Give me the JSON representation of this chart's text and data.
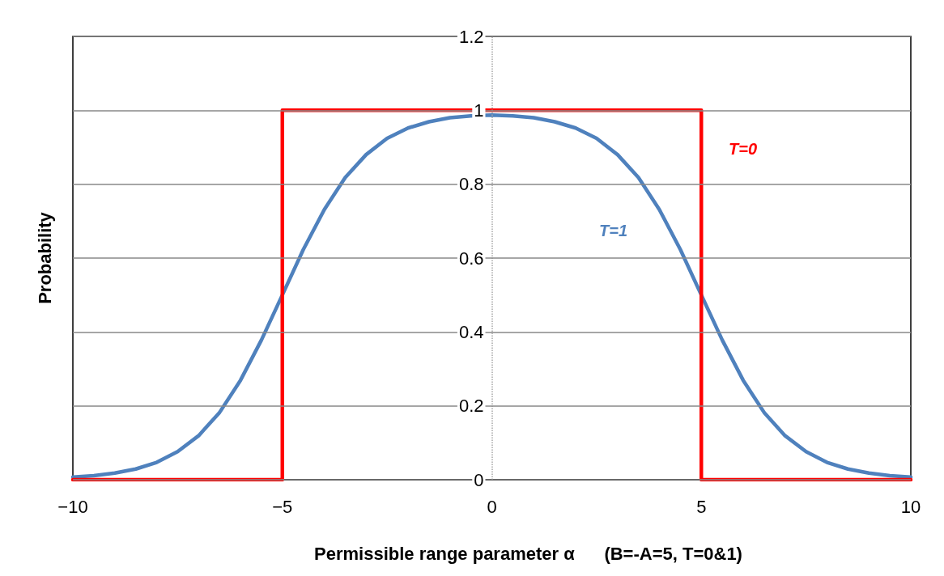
{
  "chart_data": {
    "type": "line",
    "xlabel": "Permissible range parameter α      (B=-A=5, T=0&1)",
    "ylabel": "Probability",
    "series": [
      {
        "color": "#4f81bd",
        "x": [
          -10,
          -9.5,
          -9,
          -8.5,
          -8,
          -7.5,
          -7,
          -6.5,
          -6,
          -5.5,
          -5,
          -4.5,
          -4,
          -3.5,
          -3,
          -2.5,
          -2,
          -1.5,
          -1,
          -0.5,
          0,
          0.5,
          1,
          1.5,
          2,
          2.5,
          3,
          3.5,
          4,
          4.5,
          5,
          5.5,
          6,
          6.5,
          7,
          7.5,
          8,
          8.5,
          9,
          9.5,
          10
        ],
        "values": [
          0.007,
          0.011,
          0.018,
          0.029,
          0.047,
          0.076,
          0.119,
          0.182,
          0.269,
          0.378,
          0.5,
          0.623,
          0.731,
          0.818,
          0.88,
          0.924,
          0.952,
          0.969,
          0.98,
          0.985,
          0.987,
          0.985,
          0.98,
          0.969,
          0.952,
          0.924,
          0.88,
          0.818,
          0.731,
          0.623,
          0.5,
          0.378,
          0.269,
          0.182,
          0.119,
          0.076,
          0.047,
          0.029,
          0.018,
          0.011,
          0.007
        ]
      },
      {
        "color": "#ff0000",
        "x": [
          -10,
          -5,
          -5,
          5,
          5,
          10
        ],
        "values": [
          0,
          0,
          1,
          1,
          0,
          0
        ]
      }
    ],
    "annotations": [
      "T=1",
      "T=0"
    ],
    "xlim": [
      -10,
      10
    ],
    "xticks": [
      {
        "value": -10,
        "label": "−10"
      },
      {
        "value": -5,
        "label": "−5"
      },
      0,
      5,
      10
    ],
    "ylim": [
      0,
      1.2
    ],
    "yticks": [
      0,
      0.2,
      0.4,
      0.6,
      0.8,
      1,
      1.2
    ],
    "ref_lines": [
      {
        "axis": "x",
        "value": 0,
        "color": "#a6a6a6",
        "line_style": "dotted"
      }
    ],
    "grid": "y",
    "marker": "none",
    "line_style": "solid"
  }
}
